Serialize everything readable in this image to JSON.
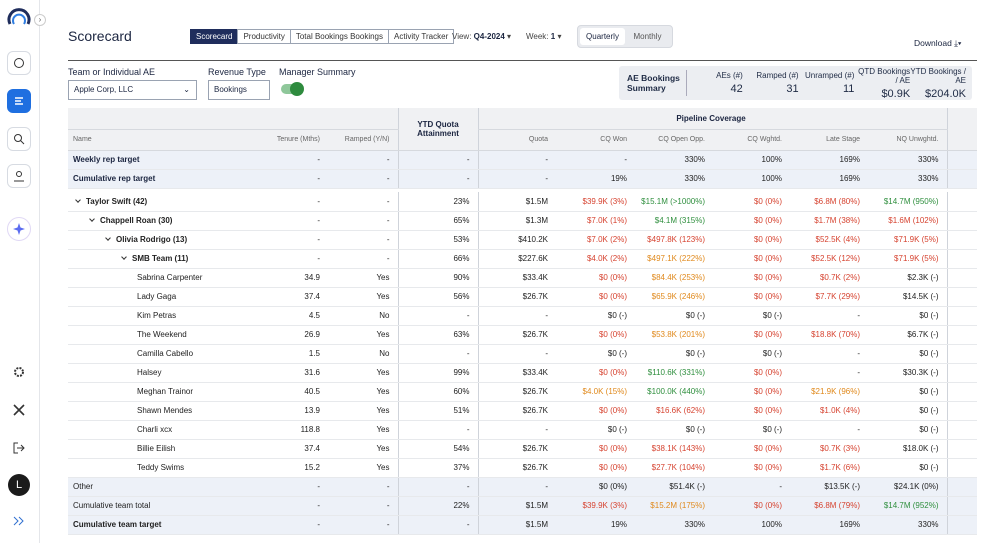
{
  "sidebar": {
    "avatar": "L"
  },
  "header": {
    "title": "Scorecard",
    "tabs": [
      "Scorecard",
      "Productivity",
      "Total Bookings Bookings",
      "Activity Tracker"
    ],
    "view": {
      "label": "View:",
      "value": "Q4-2024"
    },
    "week": {
      "label": "Week:",
      "value": "1"
    },
    "periods": [
      "Quarterly",
      "Monthly"
    ],
    "download": "Download"
  },
  "filters": {
    "team": {
      "label": "Team or Individual AE",
      "value": "Apple Corp, LLC"
    },
    "revenue": {
      "label": "Revenue Type",
      "value": "Bookings"
    },
    "manager_summary": {
      "label": "Manager Summary"
    }
  },
  "summary": {
    "title": "AE Bookings Summary",
    "items": [
      {
        "label": "AEs (#)",
        "value": "42"
      },
      {
        "label": "Ramped (#)",
        "value": "31"
      },
      {
        "label": "Unramped (#)",
        "value": "11"
      },
      {
        "label": "QTD Bookings / AE",
        "value": "$0.9K"
      },
      {
        "label": "YTD Bookings / AE",
        "value": "$204.0K"
      }
    ]
  },
  "table": {
    "group_header": "Pipeline Coverage",
    "columns": [
      "Name",
      "Tenure (Mths)",
      "Ramped (Y/N)",
      "YTD Quota Attainment",
      "Quota",
      "CQ Won",
      "CQ Open Opp.",
      "CQ Wghtd.",
      "Late Stage",
      "NQ Unwghtd."
    ],
    "target_rows": [
      [
        "Weekly rep target",
        "-",
        "-",
        "-",
        "-",
        "-",
        "330%",
        "100%",
        "169%",
        "330%"
      ],
      [
        "Cumulative rep target",
        "-",
        "-",
        "-",
        "-",
        "19%",
        "330%",
        "100%",
        "169%",
        "330%"
      ]
    ],
    "rows": [
      [
        "Taylor Swift (42)",
        "-",
        "-",
        "23%",
        "$1.5M",
        "$39.9K (3%)",
        "$15.1M (>1000%)",
        "$0 (0%)",
        "$6.8M (80%)",
        "$14.7M (950%)"
      ],
      [
        "Chappell Roan (30)",
        "-",
        "-",
        "65%",
        "$1.3M",
        "$7.0K (1%)",
        "$4.1M (315%)",
        "$0 (0%)",
        "$1.7M (38%)",
        "$1.6M (102%)"
      ],
      [
        "Olivia Rodrigo (13)",
        "-",
        "-",
        "53%",
        "$410.2K",
        "$7.0K (2%)",
        "$497.8K (123%)",
        "$0 (0%)",
        "$52.5K (4%)",
        "$71.9K (5%)"
      ],
      [
        "SMB Team (11)",
        "-",
        "-",
        "66%",
        "$227.6K",
        "$4.0K (2%)",
        "$497.1K (222%)",
        "$0 (0%)",
        "$52.5K (12%)",
        "$71.9K (5%)"
      ],
      [
        "Sabrina Carpenter",
        "34.9",
        "Yes",
        "90%",
        "$33.4K",
        "$0 (0%)",
        "$84.4K (253%)",
        "$0 (0%)",
        "$0.7K (2%)",
        "$2.3K (-)"
      ],
      [
        "Lady Gaga",
        "37.4",
        "Yes",
        "56%",
        "$26.7K",
        "$0 (0%)",
        "$65.9K (246%)",
        "$0 (0%)",
        "$7.7K (29%)",
        "$14.5K (-)"
      ],
      [
        "Kim Petras",
        "4.5",
        "No",
        "-",
        "-",
        "$0 (-)",
        "$0 (-)",
        "$0 (-)",
        "-",
        "$0 (-)"
      ],
      [
        "The Weekend",
        "26.9",
        "Yes",
        "63%",
        "$26.7K",
        "$0 (0%)",
        "$53.8K (201%)",
        "$0 (0%)",
        "$18.8K (70%)",
        "$6.7K (-)"
      ],
      [
        "Camilla Cabello",
        "1.5",
        "No",
        "-",
        "-",
        "$0 (-)",
        "$0 (-)",
        "$0 (-)",
        "-",
        "$0 (-)"
      ],
      [
        "Halsey",
        "31.6",
        "Yes",
        "99%",
        "$33.4K",
        "$0 (0%)",
        "$110.6K (331%)",
        "$0 (0%)",
        "-",
        "$30.3K (-)"
      ],
      [
        "Meghan Trainor",
        "40.5",
        "Yes",
        "60%",
        "$26.7K",
        "$4.0K (15%)",
        "$100.0K (440%)",
        "$0 (0%)",
        "$21.9K (96%)",
        "$0 (-)"
      ],
      [
        "Shawn Mendes",
        "13.9",
        "Yes",
        "51%",
        "$26.7K",
        "$0 (0%)",
        "$16.6K (62%)",
        "$0 (0%)",
        "$1.0K (4%)",
        "$0 (-)"
      ],
      [
        "Charli xcx",
        "118.8",
        "Yes",
        "-",
        "-",
        "$0 (-)",
        "$0 (-)",
        "$0 (-)",
        "-",
        "$0 (-)"
      ],
      [
        "Billie Eilish",
        "37.4",
        "Yes",
        "54%",
        "$26.7K",
        "$0 (0%)",
        "$38.1K (143%)",
        "$0 (0%)",
        "$0.7K (3%)",
        "$18.0K (-)"
      ],
      [
        "Teddy Swims",
        "15.2",
        "Yes",
        "37%",
        "$26.7K",
        "$0 (0%)",
        "$27.7K (104%)",
        "$0 (0%)",
        "$1.7K (6%)",
        "$0 (-)"
      ]
    ],
    "footer_rows": [
      [
        "Other",
        "-",
        "-",
        "-",
        "-",
        "$0 (0%)",
        "$51.4K (-)",
        "-",
        "$13.5K (-)",
        "$24.1K (0%)"
      ],
      [
        "Cumulative team total",
        "-",
        "-",
        "22%",
        "$1.5M",
        "$39.9K (3%)",
        "$15.2M (175%)",
        "$0 (0%)",
        "$6.8M (79%)",
        "$14.7M (952%)"
      ],
      [
        "Cumulative team target",
        "-",
        "-",
        "-",
        "$1.5M",
        "19%",
        "330%",
        "100%",
        "169%",
        "330%"
      ]
    ]
  }
}
